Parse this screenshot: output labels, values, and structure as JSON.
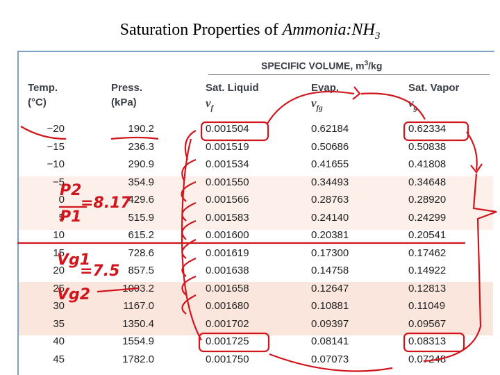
{
  "title": {
    "prefix": "Saturation Properties of",
    "italic": "Ammonia:NH",
    "subscript": "3"
  },
  "table": {
    "group_header": {
      "text": "SPECIFIC VOLUME, m",
      "sup": "3",
      "unit": "/kg"
    },
    "columns": [
      {
        "line1": "Temp.",
        "line2": "(°C)"
      },
      {
        "line1": "Press.",
        "line2": "(kPa)"
      },
      {
        "line1": "Sat. Liquid",
        "symbol": "v",
        "sub": "f"
      },
      {
        "line1": "Evap.",
        "symbol": "v",
        "sub": "fg"
      },
      {
        "line1": "Sat. Vapor",
        "symbol": "v",
        "sub": "g"
      }
    ],
    "rows": [
      [
        "−20",
        "190.2",
        "0.001504",
        "0.62184",
        "0.62334"
      ],
      [
        "−15",
        "236.3",
        "0.001519",
        "0.50686",
        "0.50838"
      ],
      [
        "−10",
        "290.9",
        "0.001534",
        "0.41655",
        "0.41808"
      ],
      [
        "−5",
        "354.9",
        "0.001550",
        "0.34493",
        "0.34648"
      ],
      [
        "0",
        "429.6",
        "0.001566",
        "0.28763",
        "0.28920"
      ],
      [
        "5",
        "515.9",
        "0.001583",
        "0.24140",
        "0.24299"
      ],
      [
        "10",
        "615.2",
        "0.001600",
        "0.20381",
        "0.20541"
      ],
      [
        "15",
        "728.6",
        "0.001619",
        "0.17300",
        "0.17462"
      ],
      [
        "20",
        "857.5",
        "0.001638",
        "0.14758",
        "0.14922"
      ],
      [
        "25",
        "1003.2",
        "0.001658",
        "0.12647",
        "0.12813"
      ],
      [
        "30",
        "1167.0",
        "0.001680",
        "0.10881",
        "0.11049"
      ],
      [
        "35",
        "1350.4",
        "0.001702",
        "0.09397",
        "0.09567"
      ],
      [
        "40",
        "1554.9",
        "0.001725",
        "0.08141",
        "0.08313"
      ],
      [
        "45",
        "1782.0",
        "0.001750",
        "0.07073",
        "0.07248"
      ]
    ]
  },
  "annotations": {
    "p2": "P2",
    "p1": "P1",
    "ratio_p": "=8.17",
    "vg1": "Vg1",
    "vg2": "Vg2",
    "ratio_v": "=7.5"
  }
}
